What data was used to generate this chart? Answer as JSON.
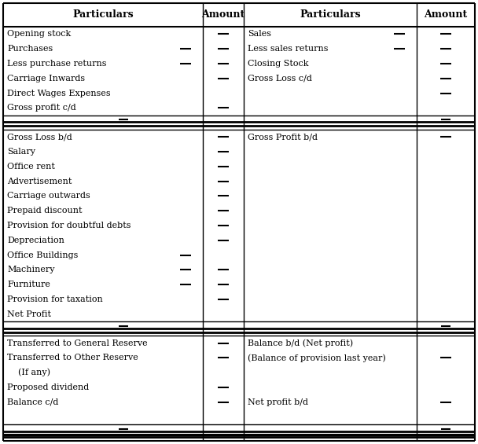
{
  "bg_color": "#ffffff",
  "text_color": "#000000",
  "figsize": [
    6.08,
    5.65
  ],
  "dpi": 100,
  "header_labels": [
    "Particulars",
    "Amount",
    "Particulars",
    "Amount"
  ],
  "sections": [
    {
      "left_items": [
        {
          "text": "Opening stock",
          "dash_mid": false,
          "dash_right": true
        },
        {
          "text": "Purchases",
          "dash_mid": true,
          "dash_right": true
        },
        {
          "text": "Less purchase returns",
          "dash_mid": true,
          "dash_right": true
        },
        {
          "text": "Carriage Inwards",
          "dash_mid": false,
          "dash_right": true
        },
        {
          "text": "Direct Wages Expenses",
          "dash_mid": false,
          "dash_right": false
        },
        {
          "text": "Gross profit c/d",
          "dash_mid": false,
          "dash_right": true
        }
      ],
      "right_items": [
        {
          "text": "Sales",
          "dash_mid": true,
          "dash_right": true
        },
        {
          "text": "Less sales returns",
          "dash_mid": true,
          "dash_right": true
        },
        {
          "text": "Closing Stock",
          "dash_mid": false,
          "dash_right": true
        },
        {
          "text": "Gross Loss c/d",
          "dash_mid": false,
          "dash_right": true
        },
        {
          "text": "",
          "dash_mid": false,
          "dash_right": true
        },
        {
          "text": "",
          "dash_mid": false,
          "dash_right": false
        }
      ]
    },
    {
      "left_items": [
        {
          "text": "Gross Loss b/d",
          "dash_mid": false,
          "dash_right": true
        },
        {
          "text": "Salary",
          "dash_mid": false,
          "dash_right": true
        },
        {
          "text": "Office rent",
          "dash_mid": false,
          "dash_right": true
        },
        {
          "text": "Advertisement",
          "dash_mid": false,
          "dash_right": true
        },
        {
          "text": "Carriage outwards",
          "dash_mid": false,
          "dash_right": true
        },
        {
          "text": "Prepaid discount",
          "dash_mid": false,
          "dash_right": true
        },
        {
          "text": "Provision for doubtful debts",
          "dash_mid": false,
          "dash_right": true
        },
        {
          "text": "Depreciation",
          "dash_mid": false,
          "dash_right": true
        },
        {
          "text": "Office Buildings",
          "dash_mid": true,
          "dash_right": false
        },
        {
          "text": "Machinery",
          "dash_mid": true,
          "dash_right": true
        },
        {
          "text": "Furniture",
          "dash_mid": true,
          "dash_right": true
        },
        {
          "text": "Provision for taxation",
          "dash_mid": false,
          "dash_right": true
        },
        {
          "text": "Net Profit",
          "dash_mid": false,
          "dash_right": false
        }
      ],
      "right_items": [
        {
          "text": "Gross Profit b/d",
          "dash_mid": false,
          "dash_right": true
        },
        {
          "text": "",
          "dash_mid": false,
          "dash_right": false
        },
        {
          "text": "",
          "dash_mid": false,
          "dash_right": false
        },
        {
          "text": "",
          "dash_mid": false,
          "dash_right": false
        },
        {
          "text": "",
          "dash_mid": false,
          "dash_right": false
        },
        {
          "text": "",
          "dash_mid": false,
          "dash_right": false
        },
        {
          "text": "",
          "dash_mid": false,
          "dash_right": false
        },
        {
          "text": "",
          "dash_mid": false,
          "dash_right": false
        },
        {
          "text": "",
          "dash_mid": false,
          "dash_right": false
        },
        {
          "text": "",
          "dash_mid": false,
          "dash_right": false
        },
        {
          "text": "",
          "dash_mid": false,
          "dash_right": false
        },
        {
          "text": "",
          "dash_mid": false,
          "dash_right": false
        },
        {
          "text": "",
          "dash_mid": false,
          "dash_right": false
        }
      ]
    },
    {
      "left_items": [
        {
          "text": "Transferred to General Reserve",
          "dash_mid": false,
          "dash_right": true
        },
        {
          "text": "Transferred to Other Reserve",
          "dash_mid": false,
          "dash_right": true
        },
        {
          "text": "  (If any)",
          "dash_mid": false,
          "dash_right": false
        },
        {
          "text": "Proposed dividend",
          "dash_mid": false,
          "dash_right": true
        },
        {
          "text": "Balance c/d",
          "dash_mid": false,
          "dash_right": true
        }
      ],
      "right_items": [
        {
          "text": "Balance b/d (Net profit)",
          "dash_mid": false,
          "dash_right": false
        },
        {
          "text": "(Balance of provision last year)",
          "dash_mid": false,
          "dash_right": true
        },
        {
          "text": "",
          "dash_mid": false,
          "dash_right": false
        },
        {
          "text": "",
          "dash_mid": false,
          "dash_right": false
        },
        {
          "text": "Net profit b/d",
          "dash_mid": false,
          "dash_right": true
        }
      ]
    }
  ]
}
